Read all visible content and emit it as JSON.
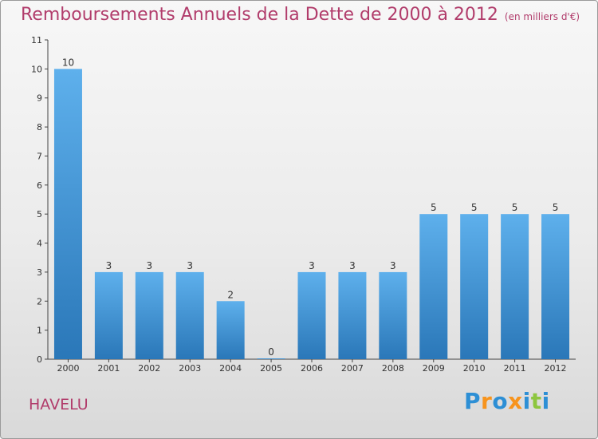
{
  "chart_data": {
    "type": "bar",
    "title": "Remboursements Annuels de la Dette de 2000 à 2012",
    "subtitle": "(en milliers d'€)",
    "categories": [
      "2000",
      "2001",
      "2002",
      "2003",
      "2004",
      "2005",
      "2006",
      "2007",
      "2008",
      "2009",
      "2010",
      "2011",
      "2012"
    ],
    "values": [
      10,
      3,
      3,
      3,
      2,
      0,
      3,
      3,
      3,
      5,
      5,
      5,
      5
    ],
    "ylim": [
      0,
      11
    ],
    "yticks": [
      0,
      1,
      2,
      3,
      4,
      5,
      6,
      7,
      8,
      9,
      10,
      11
    ],
    "bar_color": "#3a8fd6",
    "grid": false
  },
  "location": "HAVELU",
  "logo": {
    "text": "Proxiti",
    "letter_colors": [
      "#2d8fd5",
      "#f7941d",
      "#2d8fd5",
      "#f7941d",
      "#2d8fd5",
      "#8dc63f",
      "#2d8fd5"
    ]
  },
  "colors": {
    "title": "#b13c6b",
    "axis": "#444444"
  }
}
